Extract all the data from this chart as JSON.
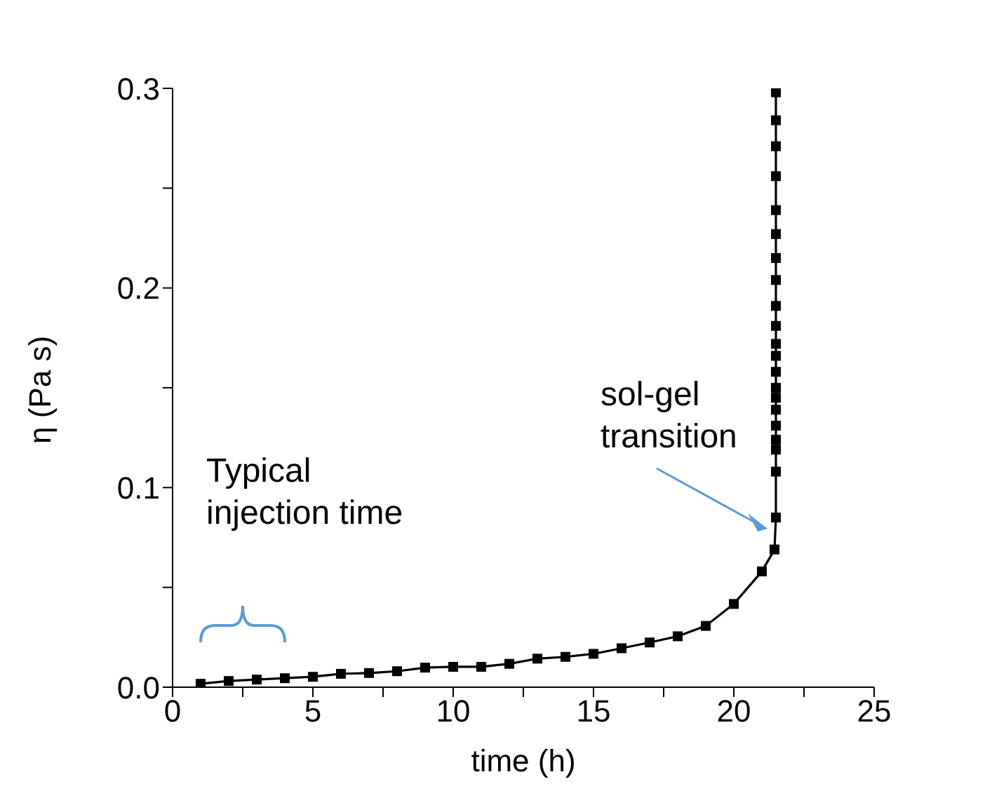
{
  "chart_data": {
    "type": "line",
    "xlabel": "time (h)",
    "ylabel": "η (Pa s)",
    "x": [
      1,
      2,
      3,
      4,
      5,
      6,
      7,
      8,
      9,
      10,
      11,
      12,
      13,
      14,
      15,
      16,
      17,
      18,
      19,
      20,
      21,
      21.45,
      21.5,
      21.5,
      21.5,
      21.5,
      21.5,
      21.5,
      21.5,
      21.5,
      21.5,
      21.5,
      21.5,
      21.5,
      21.5,
      21.5,
      21.5,
      21.5,
      21.5,
      21.5,
      21.5,
      21.5,
      21.5
    ],
    "series": [
      {
        "color": "#000000",
        "values": [
          0.0017,
          0.0031,
          0.0038,
          0.0045,
          0.0052,
          0.0067,
          0.0071,
          0.008,
          0.0098,
          0.0102,
          0.0102,
          0.0117,
          0.0143,
          0.0152,
          0.0167,
          0.0195,
          0.0224,
          0.0255,
          0.0307,
          0.0417,
          0.058,
          0.069,
          0.085,
          0.108,
          0.119,
          0.124,
          0.131,
          0.139,
          0.145,
          0.15,
          0.158,
          0.166,
          0.172,
          0.181,
          0.191,
          0.204,
          0.215,
          0.227,
          0.239,
          0.256,
          0.271,
          0.284,
          0.298
        ]
      }
    ],
    "xlim": [
      0,
      25
    ],
    "xticks": [
      0,
      {
        "value": 2.5,
        "label": null
      },
      5,
      {
        "value": 7.5,
        "label": null
      },
      10,
      {
        "value": 12.5,
        "label": null
      },
      15,
      {
        "value": 17.5,
        "label": null
      },
      20,
      {
        "value": 22.5,
        "label": null
      },
      25
    ],
    "ylim": [
      0,
      0.3
    ],
    "yticks": [
      {
        "value": 0,
        "label": "0.0"
      },
      {
        "value": 0.05,
        "label": null
      },
      0.1,
      {
        "value": 0.15,
        "label": null
      },
      0.2,
      {
        "value": 0.25,
        "label": null
      },
      0.3
    ],
    "annotations": [
      "Typical\ninjection time",
      {
        "text": "sol-gel\ntransition",
        "x": 21.5,
        "y": 0.085
      }
    ],
    "marker": "square",
    "line_style": "solid",
    "grid": false,
    "legend": false
  }
}
